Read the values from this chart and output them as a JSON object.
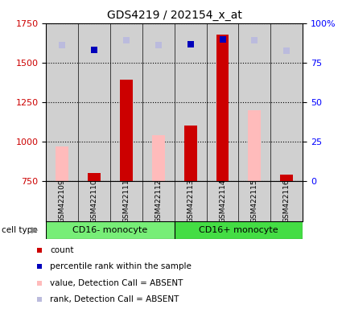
{
  "title": "GDS4219 / 202154_x_at",
  "samples": [
    "GSM422109",
    "GSM422110",
    "GSM422111",
    "GSM422112",
    "GSM422113",
    "GSM422114",
    "GSM422115",
    "GSM422116"
  ],
  "cell_type_labels": [
    "CD16- monocyte",
    "CD16+ monocyte"
  ],
  "count_values": [
    null,
    800,
    1390,
    null,
    1100,
    1680,
    null,
    790
  ],
  "value_absent": [
    970,
    null,
    null,
    1040,
    null,
    null,
    1200,
    null
  ],
  "rank_present": [
    null,
    1580,
    null,
    null,
    1615,
    1645,
    null,
    null
  ],
  "rank_absent": [
    1610,
    null,
    1640,
    1610,
    null,
    null,
    1640,
    1575
  ],
  "ymin": 750,
  "ymax": 1750,
  "yticks_left": [
    750,
    1000,
    1250,
    1500,
    1750
  ],
  "yticks_right": [
    0,
    25,
    50,
    75,
    100
  ],
  "ytick_right_labels": [
    "0",
    "25",
    "50",
    "75",
    "100%"
  ],
  "color_count": "#cc0000",
  "color_rank_present": "#0000bb",
  "color_value_absent": "#ffbbbb",
  "color_rank_absent": "#bbbbdd",
  "color_bg_col": "#d0d0d0",
  "color_cell_type_1": "#77ee77",
  "color_cell_type_2": "#44dd44",
  "bar_width": 0.4,
  "legend_items": [
    {
      "color": "#cc0000",
      "label": "count"
    },
    {
      "color": "#0000bb",
      "label": "percentile rank within the sample"
    },
    {
      "color": "#ffbbbb",
      "label": "value, Detection Call = ABSENT"
    },
    {
      "color": "#bbbbdd",
      "label": "rank, Detection Call = ABSENT"
    }
  ]
}
